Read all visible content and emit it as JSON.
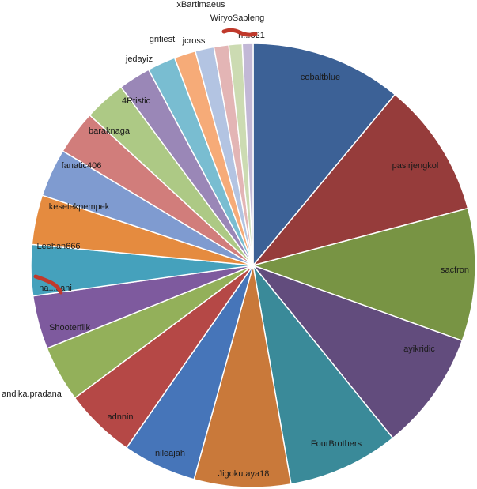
{
  "chart_data": {
    "type": "pie",
    "title": "",
    "start_angle_deg": 0,
    "direction": "clockwise",
    "slices": [
      {
        "label": "cobaltblue",
        "value": 11.3,
        "color": "#3c6196"
      },
      {
        "label": "pasirjengkol",
        "value": 10.1,
        "color": "#963c3b"
      },
      {
        "label": "sacfron",
        "value": 9.9,
        "color": "#789444"
      },
      {
        "label": "ayikridic",
        "value": 8.9,
        "color": "#624c7d"
      },
      {
        "label": "FourBrothers",
        "value": 8.3,
        "color": "#3a8a99"
      },
      {
        "label": "Jigoku.aya18",
        "value": 7.2,
        "color": "#c9793a"
      },
      {
        "label": "nileajah",
        "value": 5.5,
        "color": "#4675b9"
      },
      {
        "label": "adnnin",
        "value": 5.3,
        "color": "#b54846"
      },
      {
        "label": "andika.pradana",
        "value": 4.2,
        "color": "#93b05a"
      },
      {
        "label": "Shooterflik",
        "value": 4.0,
        "color": "#7e5a9e"
      },
      {
        "label": "na...sani",
        "value": 3.8,
        "color": "#45a1bc"
      },
      {
        "label": "Leehan666",
        "value": 3.7,
        "color": "#e58b3f"
      },
      {
        "label": "keselekpempek",
        "value": 3.6,
        "color": "#7f9bd0"
      },
      {
        "label": "fanatic406",
        "value": 3.3,
        "color": "#d17d7b"
      },
      {
        "label": "baraknaga",
        "value": 3.1,
        "color": "#adc985"
      },
      {
        "label": "4Rtistic",
        "value": 2.4,
        "color": "#9a87b7"
      },
      {
        "label": "jedayiz",
        "value": 2.1,
        "color": "#79bdd1"
      },
      {
        "label": "grifiest",
        "value": 1.6,
        "color": "#f6ab78"
      },
      {
        "label": "jcross",
        "value": 1.4,
        "color": "#b3c4e2"
      },
      {
        "label": "xBartimaeus",
        "value": 1.1,
        "color": "#e3b5b5"
      },
      {
        "label": "WiryoSableng",
        "value": 1.0,
        "color": "#ccdbb2"
      },
      {
        "label": "h...321",
        "value": 0.8,
        "color": "#c2b8d6"
      }
    ]
  }
}
